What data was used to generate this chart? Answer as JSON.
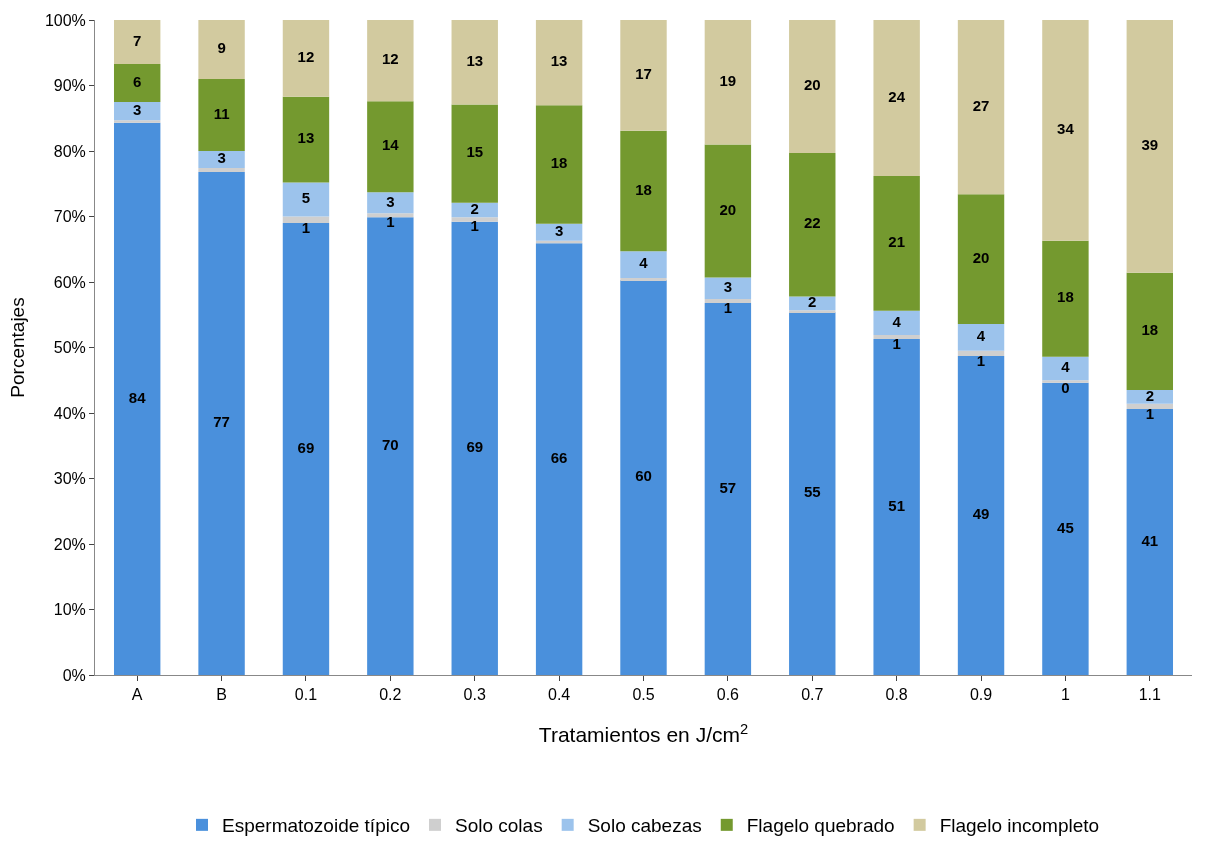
{
  "chart_data": {
    "type": "bar",
    "stacked": true,
    "xlabel": "Tratamientos en J/cm$^{2}$",
    "ylabel": "Porcentajes",
    "categories": [
      "A",
      "B",
      "0.1",
      "0.2",
      "0.3",
      "0.4",
      "0.5",
      "0.6",
      "0.7",
      "0.8",
      "0.9",
      "1",
      "1.1"
    ],
    "series": [
      {
        "name": "Espermatozoide típico",
        "color": "#4a90dc",
        "values": [
          84.3,
          76.8,
          69.0,
          69.9,
          69.2,
          65.9,
          60.3,
          56.8,
          55.4,
          51.3,
          48.7,
          44.6,
          40.6
        ],
        "value_labels": [
          "84",
          "77",
          "69",
          "70",
          "69",
          "66",
          "60",
          "57",
          "55",
          "51",
          "49",
          "45",
          "41"
        ]
      },
      {
        "name": "Solo colas",
        "color": "#cfcfcf",
        "values": [
          0.4,
          0.6,
          1.0,
          0.6,
          0.7,
          0.4,
          0.3,
          0.6,
          0.3,
          0.6,
          0.8,
          0.4,
          0.8
        ],
        "value_labels": [
          null,
          null,
          "1",
          "1",
          "1",
          null,
          null,
          "1",
          null,
          "1",
          "1",
          "0",
          "1"
        ]
      },
      {
        "name": "Solo cabezas",
        "color": "#9cc3ec",
        "values": [
          2.8,
          2.6,
          5.2,
          3.2,
          2.2,
          2.6,
          4.1,
          3.3,
          2.1,
          3.7,
          4.1,
          3.6,
          2.1
        ],
        "value_labels": [
          "3",
          "3",
          "5",
          "3",
          "2",
          "3",
          "4",
          "3",
          "2",
          "4",
          "4",
          "4",
          "2"
        ]
      },
      {
        "name": "Flagelo quebrado",
        "color": "#74992f",
        "values": [
          5.8,
          11.0,
          13.1,
          13.9,
          15.0,
          18.1,
          18.4,
          20.3,
          21.9,
          20.6,
          19.8,
          17.7,
          17.9
        ],
        "value_labels": [
          "6",
          "11",
          "13",
          "14",
          "15",
          "18",
          "18",
          "20",
          "22",
          "21",
          "20",
          "18",
          "18"
        ]
      },
      {
        "name": "Flagelo incompleto",
        "color": "#d2ca9f",
        "values": [
          6.7,
          9.0,
          11.7,
          12.4,
          12.9,
          13.0,
          16.9,
          19.0,
          20.3,
          23.8,
          26.6,
          33.7,
          38.6
        ],
        "value_labels": [
          "7",
          "9",
          "12",
          "12",
          "13",
          "13",
          "17",
          "19",
          "20",
          "24",
          "27",
          "34",
          "39"
        ]
      }
    ],
    "ylim": [
      0,
      100
    ],
    "yticks": [
      {
        "value": 0,
        "label": "0%"
      },
      {
        "value": 10,
        "label": "10%"
      },
      {
        "value": 20,
        "label": "20%"
      },
      {
        "value": 30,
        "label": "30%"
      },
      {
        "value": 40,
        "label": "40%"
      },
      {
        "value": 50,
        "label": "50%"
      },
      {
        "value": 60,
        "label": "60%"
      },
      {
        "value": 70,
        "label": "70%"
      },
      {
        "value": 80,
        "label": "80%"
      },
      {
        "value": 90,
        "label": "90%"
      },
      {
        "value": 100,
        "label": "100%"
      }
    ],
    "grid": false,
    "legend": "bottom"
  }
}
